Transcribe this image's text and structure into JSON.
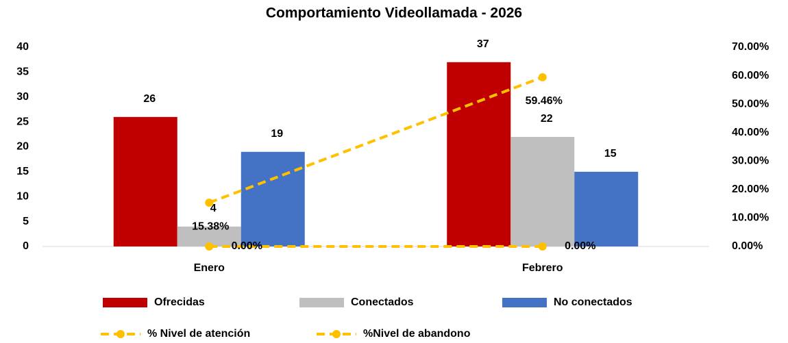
{
  "chart_data": {
    "type": "bar_line",
    "title": "Comportamiento Videollamada - 2026",
    "categories": [
      "Enero",
      "Febrero"
    ],
    "series": [
      {
        "name": "Ofrecidas",
        "color": "#c00000",
        "type": "bar",
        "values": [
          26,
          37
        ]
      },
      {
        "name": "Conectados",
        "color": "#bfbfbf",
        "type": "bar",
        "values": [
          4,
          22
        ]
      },
      {
        "name": "No conectados",
        "color": "#4472c4",
        "type": "bar",
        "values": [
          19,
          15
        ]
      },
      {
        "name": "% Nivel de atención",
        "color": "#ffc000",
        "type": "line",
        "axis": "y2",
        "values": [
          15.38,
          59.46
        ],
        "value_labels": [
          "15.38%",
          "59.46%"
        ]
      },
      {
        "name": "%Nivel de abandono",
        "color": "#ffc000",
        "type": "line",
        "axis": "y2",
        "values": [
          0,
          0
        ],
        "value_labels": [
          "0.00%",
          "0.00%"
        ]
      }
    ],
    "ylim": [
      0,
      40
    ],
    "yticks": [
      0,
      5,
      10,
      15,
      20,
      25,
      30,
      35,
      40
    ],
    "y2lim": [
      0,
      70
    ],
    "y2ticks": [
      {
        "value": 0,
        "label": "0.00%"
      },
      {
        "value": 10,
        "label": "10.00%"
      },
      {
        "value": 20,
        "label": "20.00%"
      },
      {
        "value": 30,
        "label": "30.00%"
      },
      {
        "value": 40,
        "label": "40.00%"
      },
      {
        "value": 50,
        "label": "50.00%"
      },
      {
        "value": 60,
        "label": "60.00%"
      },
      {
        "value": 70,
        "label": "70.00%"
      }
    ],
    "grid": false,
    "legend": "bottom"
  }
}
